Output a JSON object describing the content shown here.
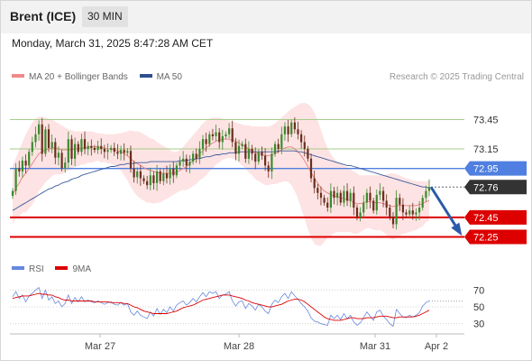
{
  "header": {
    "symbol": "Brent (ICE)",
    "timeframe": "30 MIN"
  },
  "datetime": "Monday, March 31, 2025 8:47:28 AM CET",
  "legend": {
    "ma20": "MA 20 + Bollinger Bands",
    "ma50": "MA 50"
  },
  "credit": "Research © 2025 Trading Central",
  "rsi_legend": {
    "rsi": "RSI",
    "ma9": "9MA"
  },
  "colors": {
    "up": "#3b8a2e",
    "down": "#6b2e1c",
    "bollinger_fill": "#fde3e3",
    "ma20": "#e88080",
    "ma50": "#3a5a9c",
    "resistance_line": "#a6cc8a",
    "support_line": "#dd0000",
    "pivot_line": "#4f7fe0",
    "arrow": "#2b5ba8",
    "rsi": "#6688dd",
    "rsi_ma": "#dd0000"
  },
  "chart_data": [
    {
      "type": "candlestick",
      "title": "Brent (ICE) 30 MIN",
      "ylim": [
        72.07,
        73.75
      ],
      "x_ticks": [
        "Mar 27",
        "Mar 28",
        "Mar 31",
        "Apr 2"
      ],
      "levels": [
        {
          "label": "73.45",
          "value": 73.45,
          "kind": "resistance"
        },
        {
          "label": "73.15",
          "value": 73.15,
          "kind": "resistance"
        },
        {
          "label": "72.95",
          "value": 72.95,
          "kind": "pivot"
        },
        {
          "label": "72.76",
          "value": 72.76,
          "kind": "last"
        },
        {
          "label": "72.45",
          "value": 72.45,
          "kind": "support"
        },
        {
          "label": "72.25",
          "value": 72.25,
          "kind": "support"
        }
      ],
      "last_price": 72.76,
      "closes": [
        72.72,
        72.95,
        72.92,
        73.03,
        72.98,
        73.12,
        73.22,
        73.3,
        73.4,
        73.1,
        73.35,
        73.16,
        73.22,
        73.06,
        73.11,
        72.95,
        73.01,
        73.25,
        73.05,
        73.2,
        73.12,
        73.25,
        73.15,
        73.18,
        73.16,
        73.14,
        73.18,
        73.15,
        73.12,
        73.14,
        73.16,
        73.12,
        73.1,
        73.14,
        73.11,
        73.13,
        72.95,
        72.86,
        72.92,
        72.85,
        72.82,
        72.78,
        72.88,
        72.8,
        72.92,
        72.82,
        72.9,
        72.85,
        72.95,
        72.88,
        72.98,
        73.02,
        73.05,
        72.98,
        73.02,
        73.1,
        73.05,
        73.15,
        73.25,
        73.2,
        73.3,
        73.28,
        73.32,
        73.22,
        73.28,
        73.3,
        73.36,
        73.22,
        73.1,
        73.18,
        73.2,
        73.05,
        73.15,
        73.1,
        73.02,
        73.12,
        73.08,
        72.98,
        72.92,
        73.1,
        73.2,
        73.15,
        73.3,
        73.38,
        73.3,
        73.42,
        73.35,
        73.3,
        73.22,
        73.15,
        73.05,
        72.85,
        72.75,
        72.7,
        72.65,
        72.6,
        72.55,
        72.72,
        72.65,
        72.7,
        72.6,
        72.72,
        72.62,
        72.7,
        72.55,
        72.45,
        72.5,
        72.6,
        72.7,
        72.62,
        72.52,
        72.68,
        72.72,
        72.62,
        72.55,
        72.45,
        72.38,
        72.65,
        72.58,
        72.5,
        72.48,
        72.52,
        72.48,
        72.5,
        72.55,
        72.65,
        72.72,
        72.76
      ],
      "ma20": [
        72.68,
        72.75,
        72.8,
        72.86,
        72.9,
        72.95,
        73.0,
        73.05,
        73.1,
        73.12,
        73.14,
        73.15,
        73.16,
        73.16,
        73.15,
        73.14,
        73.14,
        73.14,
        73.14,
        73.15,
        73.15,
        73.16,
        73.16,
        73.17,
        73.17,
        73.17,
        73.17,
        73.16,
        73.16,
        73.15,
        73.15,
        73.14,
        73.13,
        73.12,
        73.1,
        73.08,
        73.05,
        73.02,
        73.0,
        72.98,
        72.96,
        72.94,
        72.93,
        72.92,
        72.91,
        72.9,
        72.9,
        72.9,
        72.9,
        72.9,
        72.91,
        72.93,
        72.95,
        72.97,
        73.0,
        73.03,
        73.06,
        73.1,
        73.13,
        73.16,
        73.19,
        73.21,
        73.23,
        73.24,
        73.25,
        73.25,
        73.25,
        73.24,
        73.23,
        73.21,
        73.19,
        73.17,
        73.15,
        73.13,
        73.11,
        73.1,
        73.09,
        73.08,
        73.08,
        73.09,
        73.1,
        73.12,
        73.14,
        73.16,
        73.17,
        73.17,
        73.15,
        73.12,
        73.08,
        73.03,
        72.97,
        72.91,
        72.85,
        72.8,
        72.75,
        72.72,
        72.7,
        72.68,
        72.67,
        72.66,
        72.65,
        72.64,
        72.63,
        72.62,
        72.6,
        72.59,
        72.59,
        72.6,
        72.61,
        72.61,
        72.6,
        72.6,
        72.6,
        72.59,
        72.58,
        72.57,
        72.56,
        72.57,
        72.57,
        72.57,
        72.57,
        72.57,
        72.57,
        72.57,
        72.58,
        72.59,
        72.61,
        72.62
      ],
      "bb_upper": [
        72.98,
        73.06,
        73.14,
        73.22,
        73.3,
        73.36,
        73.42,
        73.46,
        73.48,
        73.48,
        73.47,
        73.46,
        73.45,
        73.43,
        73.41,
        73.39,
        73.37,
        73.35,
        73.34,
        73.33,
        73.33,
        73.33,
        73.33,
        73.33,
        73.33,
        73.32,
        73.31,
        73.31,
        73.3,
        73.3,
        73.3,
        73.3,
        73.31,
        73.31,
        73.32,
        73.33,
        73.34,
        73.33,
        73.33,
        73.32,
        73.3,
        73.28,
        73.26,
        73.25,
        73.22,
        73.2,
        73.18,
        73.16,
        73.14,
        73.12,
        73.12,
        73.14,
        73.17,
        73.21,
        73.25,
        73.29,
        73.33,
        73.37,
        73.41,
        73.44,
        73.46,
        73.47,
        73.47,
        73.47,
        73.46,
        73.45,
        73.44,
        73.43,
        73.42,
        73.41,
        73.4,
        73.39,
        73.39,
        73.38,
        73.38,
        73.38,
        73.38,
        73.38,
        73.38,
        73.39,
        73.41,
        73.44,
        73.47,
        73.5,
        73.53,
        73.56,
        73.58,
        73.6,
        73.62,
        73.62,
        73.61,
        73.58,
        73.52,
        73.44,
        73.34,
        73.24,
        73.16,
        73.1,
        73.05,
        73.02,
        73.0,
        72.98,
        72.96,
        72.94,
        72.92,
        72.9,
        72.88,
        72.88,
        72.88,
        72.88,
        72.88,
        72.88,
        72.88,
        72.88,
        72.89,
        72.9,
        72.9,
        72.89,
        72.88,
        72.86,
        72.85,
        72.84,
        72.83,
        72.82,
        72.82,
        72.82,
        72.82,
        72.82
      ],
      "bb_lower": [
        72.38,
        72.44,
        72.46,
        72.5,
        72.5,
        72.54,
        72.58,
        72.64,
        72.72,
        72.76,
        72.81,
        72.84,
        72.87,
        72.89,
        72.89,
        72.89,
        72.91,
        72.93,
        72.94,
        72.97,
        72.97,
        72.99,
        72.99,
        73.01,
        73.01,
        73.02,
        73.03,
        73.01,
        73.02,
        73.0,
        73.0,
        72.98,
        72.95,
        72.93,
        72.88,
        72.83,
        72.76,
        72.71,
        72.67,
        72.64,
        72.62,
        72.6,
        72.6,
        72.59,
        72.6,
        72.6,
        72.62,
        72.64,
        72.66,
        72.68,
        72.7,
        72.72,
        72.73,
        72.73,
        72.75,
        72.77,
        72.79,
        72.83,
        72.85,
        72.88,
        72.92,
        72.95,
        72.99,
        73.01,
        73.04,
        73.05,
        73.06,
        73.05,
        73.04,
        73.01,
        72.98,
        72.95,
        72.91,
        72.88,
        72.84,
        72.82,
        72.8,
        72.78,
        72.78,
        72.79,
        72.79,
        72.8,
        72.81,
        72.82,
        72.81,
        72.78,
        72.72,
        72.64,
        72.54,
        72.44,
        72.33,
        72.24,
        72.18,
        72.16,
        72.16,
        72.2,
        72.24,
        72.26,
        72.29,
        72.3,
        72.3,
        72.3,
        72.3,
        72.3,
        72.28,
        72.28,
        72.3,
        72.32,
        72.34,
        72.34,
        72.32,
        72.32,
        72.32,
        72.3,
        72.27,
        72.24,
        72.22,
        72.25,
        72.26,
        72.28,
        72.29,
        72.3,
        72.31,
        72.32,
        72.34,
        72.36,
        72.4,
        72.42
      ],
      "ma50": [
        72.52,
        72.54,
        72.56,
        72.58,
        72.6,
        72.62,
        72.64,
        72.66,
        72.68,
        72.7,
        72.72,
        72.74,
        72.75,
        72.77,
        72.78,
        72.8,
        72.81,
        72.82,
        72.84,
        72.85,
        72.86,
        72.88,
        72.89,
        72.9,
        72.91,
        72.92,
        72.93,
        72.94,
        72.95,
        72.96,
        72.97,
        72.97,
        72.98,
        72.99,
        72.99,
        73.0,
        73.0,
        73.0,
        73.01,
        73.01,
        73.01,
        73.01,
        73.02,
        73.02,
        73.02,
        73.02,
        73.02,
        73.02,
        73.02,
        73.02,
        73.02,
        73.03,
        73.03,
        73.03,
        73.04,
        73.04,
        73.05,
        73.05,
        73.06,
        73.07,
        73.07,
        73.08,
        73.09,
        73.09,
        73.1,
        73.1,
        73.11,
        73.11,
        73.11,
        73.12,
        73.12,
        73.12,
        73.12,
        73.12,
        73.12,
        73.12,
        73.12,
        73.12,
        73.12,
        73.12,
        73.12,
        73.13,
        73.13,
        73.13,
        73.13,
        73.13,
        73.13,
        73.12,
        73.12,
        73.11,
        73.1,
        73.09,
        73.08,
        73.07,
        73.06,
        73.05,
        73.04,
        73.03,
        73.02,
        73.01,
        73.0,
        72.99,
        72.98,
        72.98,
        72.97,
        72.96,
        72.95,
        72.94,
        72.93,
        72.92,
        72.91,
        72.9,
        72.89,
        72.88,
        72.87,
        72.86,
        72.85,
        72.84,
        72.83,
        72.82,
        72.81,
        72.8,
        72.79,
        72.78,
        72.77,
        72.76,
        72.76,
        72.75
      ],
      "projection": {
        "from": 72.76,
        "to": 72.25
      }
    },
    {
      "type": "line",
      "title": "RSI",
      "ylim": [
        20,
        80
      ],
      "y_ticks": [
        "70",
        "50",
        "30"
      ],
      "series": [
        {
          "name": "RSI",
          "values": [
            62,
            68,
            60,
            64,
            56,
            63,
            66,
            70,
            73,
            60,
            70,
            58,
            62,
            54,
            57,
            50,
            54,
            64,
            54,
            61,
            56,
            62,
            56,
            58,
            56,
            55,
            57,
            55,
            53,
            55,
            56,
            53,
            52,
            55,
            52,
            54,
            44,
            40,
            45,
            40,
            38,
            36,
            44,
            39,
            48,
            41,
            47,
            43,
            50,
            45,
            52,
            55,
            57,
            52,
            55,
            60,
            56,
            62,
            67,
            62,
            68,
            66,
            68,
            60,
            64,
            65,
            68,
            57,
            51,
            56,
            57,
            48,
            54,
            51,
            46,
            53,
            50,
            45,
            42,
            53,
            58,
            55,
            62,
            66,
            60,
            68,
            63,
            59,
            54,
            50,
            45,
            37,
            33,
            32,
            30,
            29,
            28,
            40,
            36,
            40,
            35,
            42,
            36,
            40,
            32,
            28,
            31,
            37,
            44,
            39,
            34,
            44,
            46,
            39,
            35,
            30,
            27,
            47,
            42,
            38,
            37,
            40,
            38,
            40,
            43,
            51,
            55,
            57
          ]
        },
        {
          "name": "9MA",
          "values": [
            60,
            61,
            62,
            63,
            63,
            63,
            64,
            65,
            66,
            65,
            65,
            64,
            64,
            62,
            61,
            59,
            58,
            58,
            57,
            57,
            57,
            57,
            57,
            57,
            57,
            56,
            56,
            56,
            56,
            56,
            55,
            55,
            55,
            55,
            54,
            54,
            52,
            50,
            49,
            47,
            45,
            44,
            43,
            42,
            42,
            42,
            42,
            42,
            43,
            44,
            45,
            47,
            49,
            50,
            51,
            52,
            54,
            56,
            58,
            59,
            60,
            61,
            62,
            63,
            64,
            64,
            64,
            63,
            62,
            61,
            60,
            58,
            57,
            55,
            54,
            53,
            52,
            51,
            50,
            50,
            51,
            52,
            53,
            55,
            57,
            58,
            59,
            59,
            58,
            56,
            53,
            50,
            47,
            44,
            41,
            38,
            36,
            35,
            34,
            34,
            34,
            35,
            36,
            37,
            37,
            36,
            36,
            36,
            37,
            37,
            37,
            38,
            39,
            39,
            39,
            38,
            37,
            37,
            38,
            38,
            38,
            38,
            38,
            39,
            40,
            42,
            44,
            46
          ]
        }
      ]
    }
  ]
}
